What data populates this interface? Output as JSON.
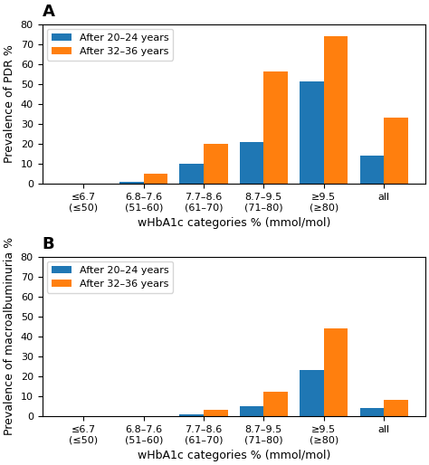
{
  "chart_data": [
    {
      "type": "bar",
      "title": "A",
      "categories": [
        "≤6.7 (≤50)",
        "6.8–7.6 (51–60)",
        "7.7–8.6 (61–70)",
        "8.7–9.5 (71–80)",
        "≥9.5 (≥80)",
        "all"
      ],
      "x_label": "wHbA1c categories % (mmol/mol)",
      "y_label": "Prevalence of PDR %",
      "series": [
        {
          "name": "After 20–24 years",
          "values": [
            0,
            1,
            10,
            21,
            51,
            14
          ]
        },
        {
          "name": "After 32–36 years",
          "values": [
            0,
            5,
            20,
            56,
            74,
            33
          ]
        }
      ],
      "ylim": [
        0,
        80
      ],
      "yticks": [
        0,
        10,
        20,
        30,
        40,
        50,
        60,
        70,
        80
      ],
      "legend": "upper left"
    },
    {
      "type": "bar",
      "title": "B",
      "categories": [
        "≤6.7 (≤50)",
        "6.8–7.6 (51–60)",
        "7.7–8.6 (61–70)",
        "8.7–9.5 (71–80)",
        "≥9.5 (≥80)",
        "all"
      ],
      "x_label": "wHbA1c categories % (mmol/mol)",
      "y_label": "Prevalence of macroalbuminuria %",
      "series": [
        {
          "name": "After 20–24 years",
          "values": [
            0,
            0,
            1,
            5,
            23,
            4
          ]
        },
        {
          "name": "After 32–36 years",
          "values": [
            0,
            0,
            3,
            12,
            44,
            8
          ]
        }
      ],
      "ylim": [
        0,
        80
      ],
      "yticks": [
        0,
        10,
        20,
        30,
        40,
        50,
        60,
        70,
        80
      ],
      "legend": "upper left"
    }
  ]
}
